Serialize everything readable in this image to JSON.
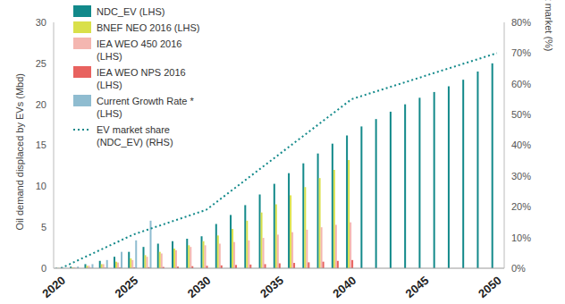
{
  "chart_data": {
    "type": "bar",
    "categories": [
      "2020",
      null,
      null,
      null,
      null,
      "2025",
      null,
      null,
      null,
      null,
      "2030",
      null,
      null,
      null,
      null,
      "2035",
      null,
      null,
      null,
      null,
      "2040",
      null,
      null,
      null,
      null,
      "2045",
      null,
      null,
      null,
      null,
      "2050"
    ],
    "y_label": "Oil demand displaced by EVs (Mbd)",
    "y2_label": "EVs share of road transport market (%)",
    "ylim": [
      0,
      30
    ],
    "yticks": [
      0,
      5,
      10,
      15,
      20,
      25,
      30
    ],
    "y2lim": [
      0,
      80
    ],
    "y2ticks": [
      {
        "value": 0,
        "label": "0%"
      },
      {
        "value": 10,
        "label": "10%"
      },
      {
        "value": 20,
        "label": "20%"
      },
      {
        "value": 30,
        "label": "30%"
      },
      {
        "value": 40,
        "label": "40%"
      },
      {
        "value": 50,
        "label": "50%"
      },
      {
        "value": 60,
        "label": "60%"
      },
      {
        "value": 70,
        "label": "70%"
      },
      {
        "value": 80,
        "label": "80%"
      }
    ],
    "legend": "upper left",
    "series": [
      {
        "name": "NDC_EV (LHS)",
        "type": "bar",
        "color": "#12898a",
        "values": [
          0.05,
          0.2,
          0.5,
          0.9,
          1.4,
          2.0,
          2.6,
          3.0,
          3.3,
          3.6,
          3.9,
          5.4,
          6.5,
          7.7,
          9.0,
          10.3,
          11.6,
          12.8,
          14.0,
          15.2,
          16.2,
          17.3,
          18.2,
          19.1,
          20.0,
          20.8,
          21.5,
          22.2,
          23.0,
          24.0,
          25.0
        ]
      },
      {
        "name": "BNEF NEO 2016 (LHS)",
        "type": "bar",
        "color": "#d9e04a",
        "values": [
          0.02,
          0.1,
          0.3,
          0.5,
          0.8,
          1.2,
          1.6,
          2.0,
          2.4,
          2.8,
          3.3,
          4.0,
          4.8,
          5.8,
          6.8,
          7.8,
          8.9,
          9.9,
          11.0,
          12.0,
          13.2,
          null,
          null,
          null,
          null,
          null,
          null,
          null,
          null,
          null,
          null
        ]
      },
      {
        "name": "IEA WEO 450 2016 (LHS)",
        "type": "bar",
        "color": "#f4b6b0",
        "values": [
          0.02,
          0.1,
          0.3,
          0.5,
          0.7,
          1.0,
          1.4,
          1.8,
          2.2,
          2.6,
          2.8,
          3.0,
          3.2,
          3.4,
          3.7,
          4.1,
          4.4,
          4.7,
          5.0,
          5.3,
          5.6,
          null,
          null,
          null,
          null,
          null,
          null,
          null,
          null,
          null,
          null
        ]
      },
      {
        "name": "IEA WEO NPS 2016 (LHS)",
        "type": "bar",
        "color": "#e8625f",
        "values": [
          0.01,
          0.02,
          0.04,
          0.06,
          0.08,
          0.1,
          0.13,
          0.16,
          0.2,
          0.25,
          0.3,
          0.35,
          0.4,
          0.45,
          0.5,
          0.6,
          0.65,
          0.72,
          0.8,
          0.9,
          1.0,
          null,
          null,
          null,
          null,
          null,
          null,
          null,
          null,
          null,
          null
        ]
      },
      {
        "name": "Current Growth Rate * (LHS)",
        "type": "bar",
        "color": "#8fbcd0",
        "values": [
          0.05,
          0.2,
          0.5,
          1.0,
          2.0,
          3.4,
          5.8,
          null,
          null,
          null,
          null,
          null,
          null,
          null,
          null,
          null,
          null,
          null,
          null,
          null,
          null,
          null,
          null,
          null,
          null,
          null,
          null,
          null,
          null,
          null,
          null
        ]
      },
      {
        "name": "EV market share (NDC_EV) (RHS)",
        "type": "line",
        "axis": "y2",
        "line_style": "dotted",
        "color": "#12898a",
        "values": [
          0,
          2.2,
          4.4,
          6.6,
          8.8,
          11,
          12.6,
          14.2,
          15.8,
          17.4,
          19,
          22.6,
          26.2,
          29.8,
          33.4,
          37,
          40.6,
          44.2,
          47.8,
          51.4,
          55,
          56.5,
          58,
          59.5,
          61,
          62.5,
          64,
          65.5,
          67,
          68.5,
          70
        ]
      }
    ]
  }
}
